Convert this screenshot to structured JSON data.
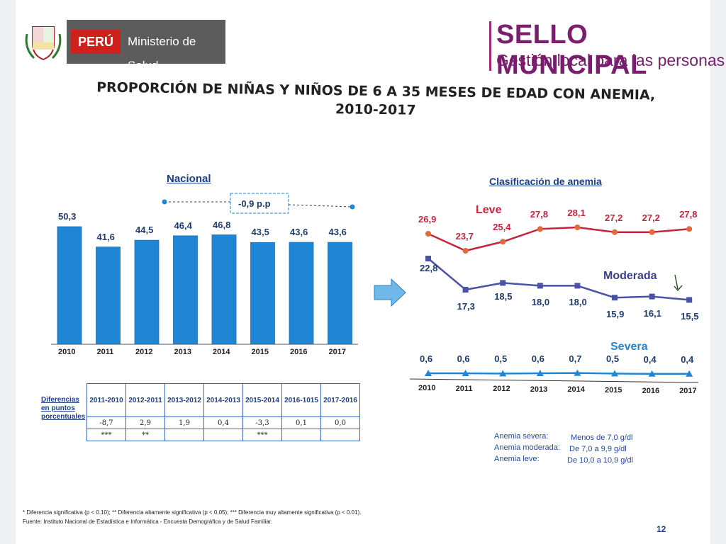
{
  "header": {
    "peru_label": "PERÚ",
    "ministry_label": "Ministerio de Salud",
    "sello_title": "SELLO MUNICIPAL",
    "sello_subtitle": "Gestión local para las personas"
  },
  "title_line1": "PROPORCIÓN DE NIÑAS Y NIÑOS DE 6 A 35 MESES DE EDAD CON ANEMIA,",
  "title_line2": "2010-2017",
  "nacional": {
    "title": "Nacional",
    "change_label": "-0,9 p.p"
  },
  "clasificacion": {
    "title": "Clasificación de anemia"
  },
  "chart_data": [
    {
      "type": "bar",
      "title": "Nacional",
      "categories": [
        "2010",
        "2011",
        "2012",
        "2013",
        "2014",
        "2015",
        "2016",
        "2017"
      ],
      "values": [
        50.3,
        41.6,
        44.5,
        46.4,
        46.8,
        43.5,
        43.6,
        43.6
      ],
      "value_labels": [
        "50,3",
        "41,6",
        "44,5",
        "46,4",
        "46,8",
        "43,5",
        "43,6",
        "43,6"
      ],
      "color": "#1f86d6"
    },
    {
      "type": "line",
      "title": "Clasificación de anemia",
      "categories": [
        "2010",
        "2011",
        "2012",
        "2013",
        "2014",
        "2015",
        "2016",
        "2017"
      ],
      "series": [
        {
          "name": "Leve",
          "values": [
            26.9,
            23.7,
            25.4,
            27.8,
            28.1,
            27.2,
            27.2,
            27.8
          ],
          "labels": [
            "26,9",
            "23,7",
            "25,4",
            "27,8",
            "28,1",
            "27,2",
            "27,2",
            "27,8"
          ],
          "color": "#c7243c"
        },
        {
          "name": "Moderada",
          "values": [
            22.8,
            17.3,
            18.5,
            18.0,
            18.0,
            15.9,
            16.1,
            15.5
          ],
          "labels": [
            "22,8",
            "17,3",
            "18,5",
            "18,0",
            "18,0",
            "15,9",
            "16,1",
            "15,5"
          ],
          "color": "#4a52a8"
        },
        {
          "name": "Severa",
          "values": [
            0.6,
            0.6,
            0.5,
            0.6,
            0.7,
            0.5,
            0.4,
            0.4
          ],
          "labels": [
            "0,6",
            "0,6",
            "0,5",
            "0,6",
            "0,7",
            "0,5",
            "0,4",
            "0,4"
          ],
          "color": "#1f86d6"
        }
      ]
    }
  ],
  "table": {
    "row_header": "Diferencias en puntos porcentuales",
    "columns": [
      "2011-2010",
      "2012-2011",
      "2013-2012",
      "2014-2013",
      "2015-2014",
      "2016-1015",
      "2017-2016"
    ],
    "values": [
      "-8,7",
      "2,9",
      "1,9",
      "0,4",
      "-3,3",
      "0,1",
      "0,0"
    ],
    "significance": [
      "***",
      "**",
      "",
      "",
      "***",
      "",
      ""
    ]
  },
  "legend_notes": {
    "severa_label": "Anemia severa:",
    "severa_range": "Menos de 7,0 g/dl",
    "moderada_label": "Anemia moderada:",
    "moderada_range": "De 7,0 a 9,9 g/dl",
    "leve_label": "Anemia leve:",
    "leve_range": "De 10,0 a 10,9 g/dl"
  },
  "footnote1": "*    Diferencia significativa (p < 0.10); **  Diferencia altamente significativa (p < 0.05); *** Diferencia muy altamente significativa (p < 0.01).",
  "footnote2": "Fuente: Instituto Nacional de Estadística e Informática - Encuesta Demográfica y de Salud Familiar.",
  "page_number": "12",
  "colors": {
    "bar": "#1f86d6",
    "leve": "#c7243c",
    "moderada": "#4a52a8",
    "severa": "#1f86d6",
    "arrow": "#6fb8e8"
  }
}
